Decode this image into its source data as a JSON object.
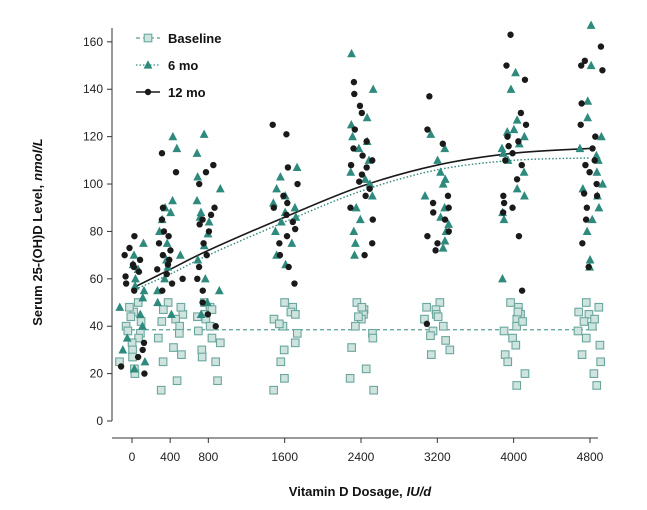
{
  "chart_data": {
    "type": "scatter",
    "title": "",
    "xlabel": "Vitamin D Dosage,",
    "xlabel_unit": "IU/d",
    "ylabel": "Serum 25-(OH)D Level,",
    "ylabel_unit": "nmol/L",
    "categories": [
      0,
      400,
      800,
      1600,
      2400,
      3200,
      4000,
      4800
    ],
    "category_labels": [
      "0",
      "400",
      "800",
      "1600",
      "2400",
      "3200",
      "4000",
      "4800"
    ],
    "ylim": [
      0,
      165
    ],
    "yticks": [
      0,
      20,
      40,
      60,
      80,
      100,
      120,
      140,
      160
    ],
    "ytick_labels": [
      "0",
      "20",
      "40",
      "60",
      "80",
      "100",
      "120",
      "140",
      "160"
    ],
    "grid": false,
    "legend_position": "top-left",
    "series": [
      {
        "name": "Baseline",
        "marker": "square",
        "color": "#5a9e95",
        "line_style": "dashed",
        "fit": [
          38.5,
          38.5,
          38.5,
          38.5,
          38.5,
          38.5,
          38.5,
          38.5
        ],
        "points": {
          "0": [
            50,
            46,
            44,
            40,
            37,
            35,
            33,
            30,
            27,
            25,
            22,
            20,
            48,
            42,
            38
          ],
          "400": [
            50,
            47,
            45,
            43,
            40,
            37,
            35,
            31,
            28,
            25,
            17,
            13,
            48,
            42
          ],
          "800": [
            50,
            48,
            45,
            43,
            40,
            38,
            35,
            33,
            30,
            27,
            25,
            17,
            47,
            44
          ],
          "1600": [
            50,
            48,
            46,
            43,
            40,
            37,
            33,
            30,
            25,
            18,
            13,
            45,
            41
          ],
          "2400": [
            50,
            47,
            45,
            43,
            40,
            37,
            35,
            31,
            22,
            18,
            13,
            48,
            44
          ],
          "3200": [
            50,
            47,
            45,
            43,
            40,
            38,
            36,
            34,
            30,
            28,
            48,
            44
          ],
          "4000": [
            50,
            48,
            45,
            43,
            40,
            38,
            35,
            32,
            28,
            25,
            20,
            15,
            46,
            42
          ],
          "4800": [
            50,
            48,
            45,
            42,
            40,
            38,
            35,
            32,
            28,
            25,
            20,
            15,
            46,
            43
          ]
        }
      },
      {
        "name": "6 mo",
        "marker": "triangle",
        "color": "#2f8a7e",
        "line_style": "dotted",
        "fit": [
          55,
          62,
          70,
          84,
          97,
          106,
          110,
          111
        ],
        "points": {
          "0": [
            75,
            70,
            66,
            60,
            57,
            55,
            52,
            48,
            45,
            40,
            35,
            30,
            25,
            22,
            64
          ],
          "400": [
            120,
            115,
            93,
            90,
            85,
            80,
            75,
            70,
            65,
            60,
            55,
            50,
            45,
            88,
            68
          ],
          "800": [
            121,
            113,
            103,
            98,
            93,
            88,
            84,
            79,
            74,
            68,
            60,
            55,
            50,
            45,
            86
          ],
          "1600": [
            107,
            103,
            98,
            95,
            92,
            88,
            84,
            80,
            75,
            70,
            66,
            90,
            86
          ],
          "2400": [
            155,
            140,
            128,
            125,
            120,
            115,
            110,
            105,
            100,
            95,
            90,
            85,
            80,
            75,
            70,
            118,
            102
          ],
          "3200": [
            121,
            115,
            110,
            105,
            100,
            95,
            90,
            86,
            83,
            80,
            76,
            73,
            102
          ],
          "4000": [
            147,
            140,
            127,
            123,
            120,
            117,
            113,
            110,
            105,
            98,
            95,
            88,
            85,
            60,
            115,
            122
          ],
          "4800": [
            167,
            150,
            135,
            128,
            120,
            115,
            110,
            105,
            100,
            95,
            90,
            85,
            80,
            68,
            65,
            112,
            98
          ]
        }
      },
      {
        "name": "12 mo",
        "marker": "circle",
        "color": "#1a1a1a",
        "line_style": "solid",
        "fit": [
          56,
          64,
          72,
          86,
          99,
          108,
          113,
          115
        ],
        "points": {
          "0": [
            78,
            73,
            70,
            68,
            66,
            63,
            61,
            58,
            55,
            33,
            30,
            27,
            23,
            20,
            65
          ],
          "400": [
            113,
            105,
            90,
            85,
            80,
            75,
            72,
            70,
            68,
            66,
            64,
            62,
            60,
            58,
            55,
            78
          ],
          "800": [
            108,
            105,
            100,
            90,
            87,
            85,
            80,
            75,
            70,
            65,
            60,
            55,
            50,
            45,
            40,
            83
          ],
          "1600": [
            125,
            121,
            107,
            100,
            95,
            90,
            87,
            84,
            81,
            78,
            75,
            70,
            65,
            58,
            92
          ],
          "2400": [
            143,
            138,
            133,
            130,
            123,
            118,
            115,
            112,
            110,
            107,
            104,
            101,
            98,
            95,
            90,
            85,
            75,
            70,
            108
          ],
          "3200": [
            137,
            123,
            117,
            95,
            90,
            88,
            85,
            80,
            78,
            75,
            72,
            41,
            92
          ],
          "4000": [
            163,
            150,
            144,
            130,
            125,
            120,
            118,
            113,
            110,
            108,
            102,
            95,
            92,
            90,
            88,
            78,
            55,
            116
          ],
          "4800": [
            158,
            152,
            150,
            148,
            134,
            125,
            120,
            115,
            110,
            105,
            100,
            95,
            90,
            85,
            75,
            65,
            108,
            96
          ]
        }
      }
    ]
  }
}
